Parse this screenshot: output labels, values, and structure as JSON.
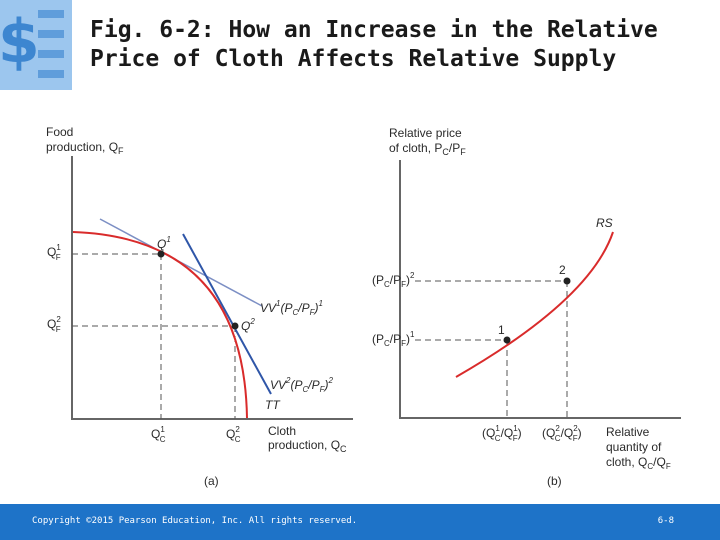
{
  "slide": {
    "title_line1": "Fig. 6-2: How an Increase in the Relative",
    "title_line2": "Price of Cloth Affects Relative Supply",
    "copyright": "Copyright ©2015 Pearson Education, Inc. All rights reserved.",
    "slide_number": "6-8"
  },
  "panel_a": {
    "y_label_1": "Food",
    "y_label_2": "production, Q",
    "y_label_2_sub": "F",
    "qf1": "Q",
    "qf1_sup": "1",
    "qf1_sub": "F",
    "qf2": "Q",
    "qf2_sup": "2",
    "qf2_sub": "F",
    "q1": "Q",
    "q1_sup": "1",
    "q2": "Q",
    "q2_sup": "2",
    "vv1": "VV",
    "vv1_sup": "1",
    "vv1_paren": "(P",
    "vv1_sub_c": "C",
    "vv1_slash": "/P",
    "vv1_sub_f": "F",
    "vv1_close": ")",
    "vv1_sup2": "1",
    "vv2": "VV",
    "vv2_sup": "2",
    "vv2_paren": "(P",
    "vv2_sub_c": "C",
    "vv2_slash": "/P",
    "vv2_sub_f": "F",
    "vv2_close": ")",
    "vv2_sup2": "2",
    "tt": "TT",
    "qc1": "Q",
    "qc1_sup": "1",
    "qc1_sub": "C",
    "qc2": "Q",
    "qc2_sup": "2",
    "qc2_sub": "C",
    "x_label_1": "Cloth",
    "x_label_2": "production, Q",
    "x_label_2_sub": "C",
    "panel_label": "(a)"
  },
  "panel_b": {
    "y_label_1": "Relative price",
    "y_label_2": "of cloth, P",
    "y_label_2_sub_c": "C",
    "y_label_2_slash": "/P",
    "y_label_2_sub_f": "F",
    "rs": "RS",
    "point1": "1",
    "point2": "2",
    "p2_open": "(P",
    "p2_sub_c": "C",
    "p2_slash": "/P",
    "p2_sub_f": "F",
    "p2_close": ")",
    "p2_sup": "2",
    "p1_open": "(P",
    "p1_sub_c": "C",
    "p1_slash": "/P",
    "p1_sub_f": "F",
    "p1_close": ")",
    "p1_sup": "1",
    "x1_open": "(Q",
    "x1_sup_a": "1",
    "x1_sub_a": "C",
    "x1_slash": "/Q",
    "x1_sup_b": "1",
    "x1_sub_b": "F",
    "x1_close": ")",
    "x2_open": "(Q",
    "x2_sup_a": "2",
    "x2_sub_a": "C",
    "x2_slash": "/Q",
    "x2_sup_b": "2",
    "x2_sub_b": "F",
    "x2_close": ")",
    "x_label_1": "Relative",
    "x_label_2": "quantity of",
    "x_label_3": "cloth, Q",
    "x_label_3_sub_c": "C",
    "x_label_3_slash": "/Q",
    "x_label_3_sub_f": "F",
    "panel_label": "(b)"
  },
  "colors": {
    "curve_red": "#d92b2b",
    "line_blue": "#2f56a8",
    "line_blue_light": "#7c8fc4",
    "footer_blue": "#1e73c8",
    "logo_blue": "#6fa7df"
  }
}
